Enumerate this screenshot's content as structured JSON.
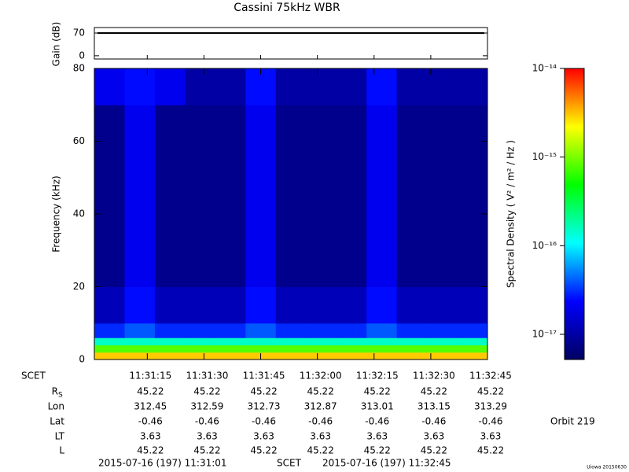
{
  "chart_data": {
    "type": "spectrogram",
    "title": "Cassini 75kHz WBR",
    "gain": {
      "ylabel": "Gain (dB)",
      "ylim": [
        -10,
        87
      ],
      "yticks": [
        0,
        70
      ],
      "value": 70,
      "color": "#000000"
    },
    "ylabel": "Frequency (kHz)",
    "ylim": [
      0,
      80
    ],
    "yticks": [
      0,
      20,
      40,
      60,
      80
    ],
    "xlim": [
      "11:31:01",
      "11:32:45"
    ],
    "xticks": [
      "11:31:15",
      "11:31:30",
      "11:31:45",
      "11:32:00",
      "11:32:15",
      "11:32:30",
      "11:32:45"
    ],
    "time_bins": [
      "11:31:01",
      "11:31:09",
      "11:31:17",
      "11:31:25",
      "11:31:33",
      "11:31:41",
      "11:31:49",
      "11:31:57",
      "11:32:05",
      "11:32:13",
      "11:32:21",
      "11:32:29",
      "11:32:37",
      "11:32:45"
    ],
    "frequency_bins": [
      0,
      2,
      4,
      6,
      10,
      20,
      40,
      60,
      70,
      80
    ],
    "values": [
      [
        3e-15,
        3e-15,
        3e-15,
        3e-15,
        3e-15,
        3e-15,
        3e-15,
        3e-15,
        3e-15,
        3e-15,
        3e-15,
        3e-15,
        3e-15
      ],
      [
        8e-16,
        8e-16,
        8e-16,
        8e-16,
        8e-16,
        8e-16,
        8e-16,
        8e-16,
        8e-16,
        8e-16,
        8e-16,
        8e-16,
        8e-16
      ],
      [
        1.5e-16,
        1.5e-16,
        1.5e-16,
        1.5e-16,
        1.5e-16,
        1.5e-16,
        1.5e-16,
        1.5e-16,
        1.5e-16,
        1.5e-16,
        1.5e-16,
        1.5e-16,
        1.5e-16
      ],
      [
        3e-17,
        4e-17,
        3e-17,
        3e-17,
        3e-17,
        4e-17,
        3e-17,
        3e-17,
        3e-17,
        4e-17,
        3e-17,
        3e-17,
        3e-17
      ],
      [
        1.2e-17,
        2.5e-17,
        1.2e-17,
        1.2e-17,
        1.2e-17,
        2.5e-17,
        1.2e-17,
        1.2e-17,
        1.2e-17,
        2.5e-17,
        1.2e-17,
        1.2e-17,
        1.2e-17
      ],
      [
        8e-18,
        2e-17,
        8e-18,
        8e-18,
        8e-18,
        2e-17,
        8e-18,
        8e-18,
        8e-18,
        2e-17,
        8e-18,
        8e-18,
        8e-18
      ],
      [
        8e-18,
        2e-17,
        8e-18,
        8e-18,
        8e-18,
        2e-17,
        8e-18,
        8e-18,
        8e-18,
        2e-17,
        8e-18,
        8e-18,
        8e-18
      ],
      [
        8e-18,
        2e-17,
        8e-18,
        8e-18,
        8e-18,
        2e-17,
        8e-18,
        8e-18,
        8e-18,
        2e-17,
        8e-18,
        8e-18,
        8e-18
      ],
      [
        2e-17,
        2.5e-17,
        2e-17,
        1e-17,
        1e-17,
        2.5e-17,
        1e-17,
        1e-17,
        1e-17,
        2.5e-17,
        1e-17,
        1e-17,
        1e-17
      ]
    ],
    "colorbar": {
      "label": "Spectral Density ( V² / m² / Hz )",
      "log": true,
      "clim": [
        5.2e-18,
        1e-14
      ],
      "ticks": [
        {
          "value": 1e-14,
          "label": "10⁻¹⁴"
        },
        {
          "value": 1e-15,
          "label": "10⁻¹⁵"
        },
        {
          "value": 1e-16,
          "label": "10⁻¹⁶"
        },
        {
          "value": 1e-17,
          "label": "10⁻¹⁷"
        }
      ],
      "colormap": [
        "#000060",
        "#0000ff",
        "#00ffff",
        "#00ff00",
        "#ffff00",
        "#ff0000"
      ]
    },
    "ephemeris": [
      {
        "label": "SCET",
        "values": [
          "11:31:15",
          "11:31:30",
          "11:31:45",
          "11:32:00",
          "11:32:15",
          "11:32:30",
          "11:32:45"
        ]
      },
      {
        "label": "R",
        "sub": "S",
        "values": [
          45.22,
          45.22,
          45.22,
          45.22,
          45.22,
          45.22,
          45.22
        ]
      },
      {
        "label": "Lon",
        "values": [
          312.45,
          312.59,
          312.73,
          312.87,
          313.01,
          313.15,
          313.29
        ]
      },
      {
        "label": "Lat",
        "values": [
          -0.46,
          -0.46,
          -0.46,
          -0.46,
          -0.46,
          -0.46,
          -0.46
        ]
      },
      {
        "label": "LT",
        "values": [
          3.63,
          3.63,
          3.63,
          3.63,
          3.63,
          3.63,
          3.63
        ]
      },
      {
        "label": "L",
        "values": [
          45.22,
          45.22,
          45.22,
          45.22,
          45.22,
          45.22,
          45.22
        ]
      }
    ],
    "start_label": "2015-07-16 (197) 11:31:01",
    "scet_label": "SCET",
    "end_label": "2015-07-16 (197) 11:32:45",
    "orbit": "Orbit 219",
    "credit": "Uiowa 20150630"
  }
}
